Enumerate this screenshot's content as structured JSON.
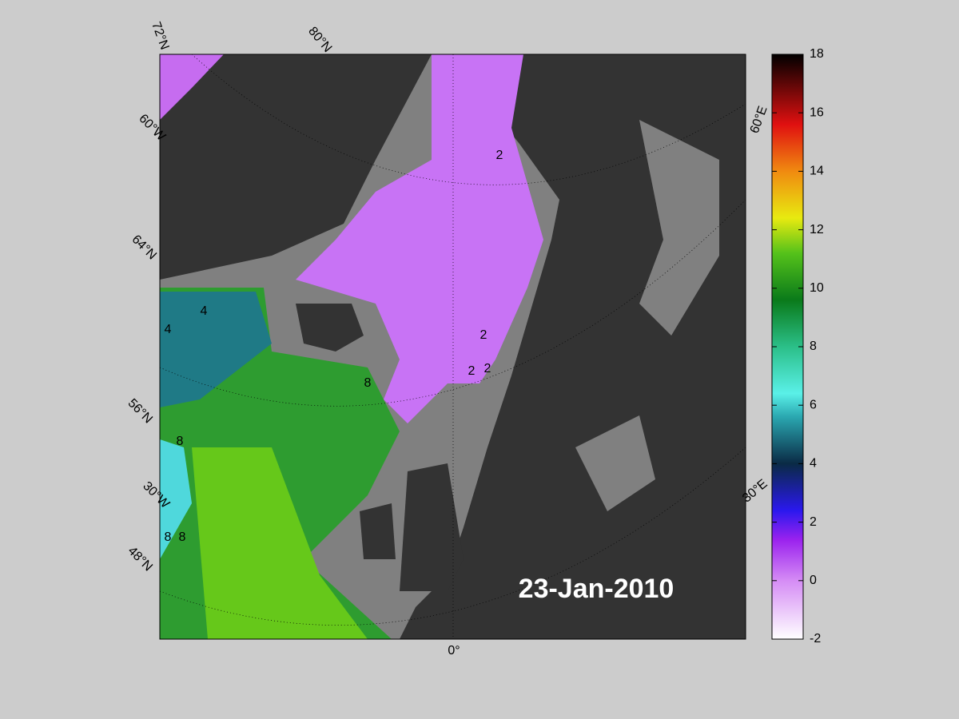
{
  "map": {
    "date": "23-Jan-2010",
    "grid_labels": [
      "72°N",
      "80°N",
      "60°W",
      "64°N",
      "56°N",
      "30°W",
      "48°N",
      "0°",
      "30°E",
      "60°E"
    ],
    "contour_labels": [
      "2",
      "2",
      "2",
      "2",
      "4",
      "4",
      "8",
      "8",
      "8",
      "8"
    ]
  },
  "colorbar": {
    "lim": [
      -2,
      18
    ],
    "ticks": [
      -2,
      0,
      2,
      4,
      6,
      8,
      10,
      12,
      14,
      16,
      18
    ]
  }
}
